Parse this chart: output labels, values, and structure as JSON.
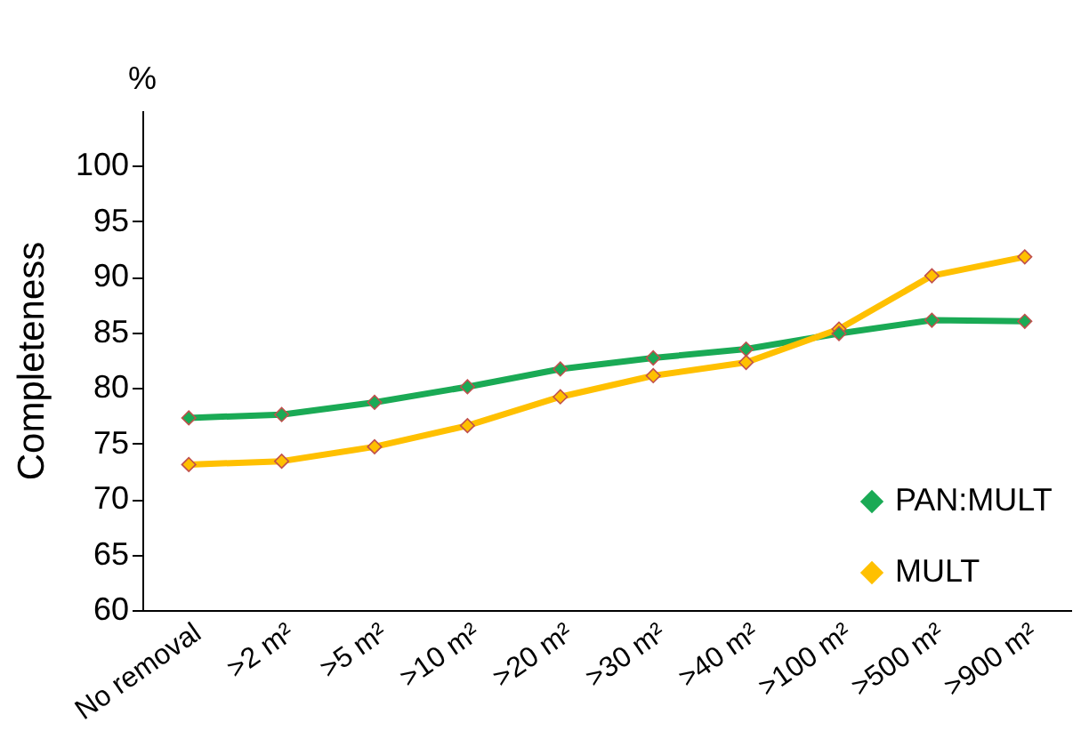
{
  "chart_data": {
    "type": "line",
    "ylabel": "Completeness",
    "annotations": [
      "%"
    ],
    "categories": [
      "No removal",
      ">2 m²",
      ">5 m²",
      ">10 m²",
      ">20 m²",
      ">30 m²",
      ">40 m²",
      ">100 m²",
      ">500 m²",
      ">900 m²"
    ],
    "series": [
      {
        "name": "PAN:MULT",
        "color": "#1aaa55",
        "values": [
          77.3,
          77.6,
          78.7,
          80.1,
          81.7,
          82.7,
          83.5,
          84.9,
          86.1,
          86.0
        ]
      },
      {
        "name": "MULT",
        "color": "#ffc000",
        "values": [
          73.1,
          73.4,
          74.7,
          76.6,
          79.2,
          81.1,
          82.3,
          85.3,
          90.1,
          91.8
        ]
      }
    ],
    "ylim": [
      60,
      105
    ],
    "yticks": [
      60,
      65,
      70,
      75,
      80,
      85,
      90,
      95,
      100
    ],
    "grid": false,
    "legend": "bottom right",
    "marker": "diamond",
    "line_style": "solid"
  }
}
